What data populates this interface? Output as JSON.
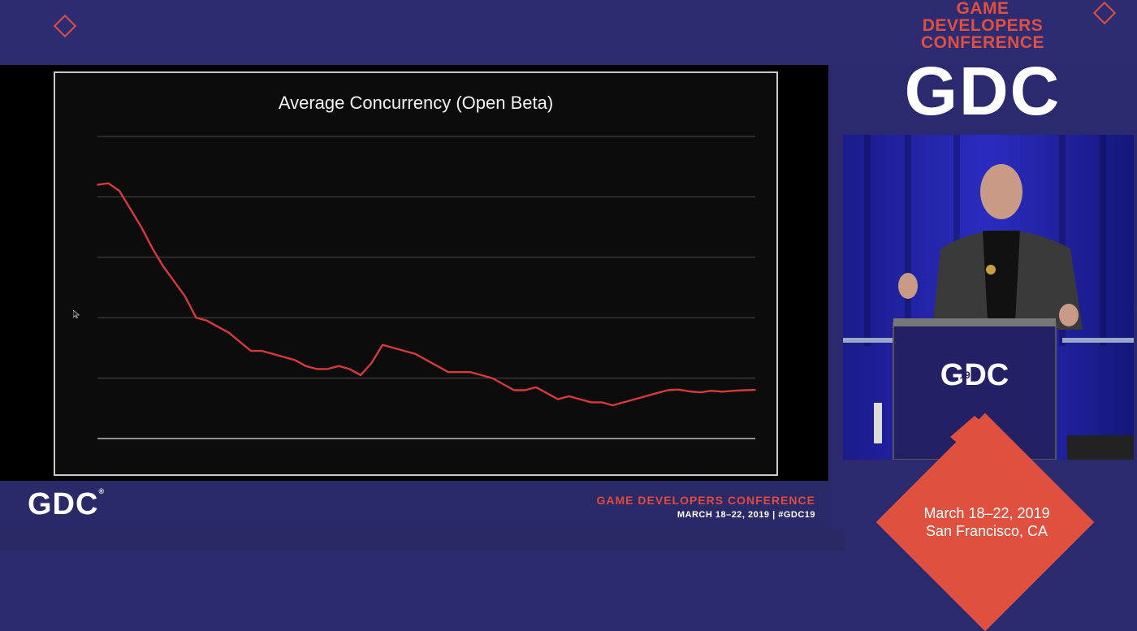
{
  "chart_data": {
    "type": "line",
    "title": "Average Concurrency (Open Beta)",
    "xlabel": "",
    "ylabel": "",
    "ylim": [
      0,
      100
    ],
    "yticks": [
      0,
      20,
      40,
      60,
      80,
      100
    ],
    "show_tick_labels": false,
    "grid": true,
    "series": [
      {
        "name": "Average Concurrency",
        "color": "#d63a3a",
        "x": [
          0,
          1,
          2,
          3,
          4,
          5,
          6,
          7,
          8,
          9,
          10,
          11,
          12,
          13,
          14,
          15,
          16,
          17,
          18,
          19,
          20,
          21,
          22,
          23,
          24,
          25,
          26,
          27,
          28,
          29,
          30,
          31,
          32,
          33,
          34,
          35,
          36,
          37,
          38,
          39,
          40,
          41,
          42,
          43,
          44,
          45,
          46,
          47,
          48,
          49,
          50,
          51,
          52,
          53,
          54,
          55,
          56,
          57,
          58,
          59,
          60
        ],
        "y": [
          84,
          84.5,
          82,
          76,
          70,
          63,
          57,
          52,
          47,
          40,
          39,
          37,
          35,
          32,
          29,
          29,
          28,
          27,
          26,
          24,
          23,
          23,
          24,
          23,
          21,
          25,
          31,
          30,
          29,
          28,
          26,
          24,
          22,
          22,
          22,
          21,
          20,
          18,
          16,
          16,
          17,
          15,
          13,
          14,
          13,
          12,
          12,
          11,
          12,
          13,
          14,
          15,
          16,
          16.2,
          15.6,
          15.3,
          15.8,
          15.5,
          15.8,
          16,
          16.1
        ]
      }
    ]
  },
  "slide_footer": {
    "logo_text": "GDC",
    "logo_tm": "®",
    "conference": "GAME DEVELOPERS CONFERENCE",
    "dates": "MARCH 18–22, 2019  |  #GDC19"
  },
  "event": {
    "conf_line1": "GAME",
    "conf_line2": "DEVELOPERS",
    "conf_line3": "CONFERENCE",
    "logo": "GDC",
    "podium_logo": "GDC",
    "podium_number": "19",
    "date": "March 18–22, 2019",
    "location": "San Francisco, CA"
  },
  "colors": {
    "brand_navy": "#2b2a6e",
    "brand_red": "#e0503f",
    "line_red": "#d63a3a"
  }
}
